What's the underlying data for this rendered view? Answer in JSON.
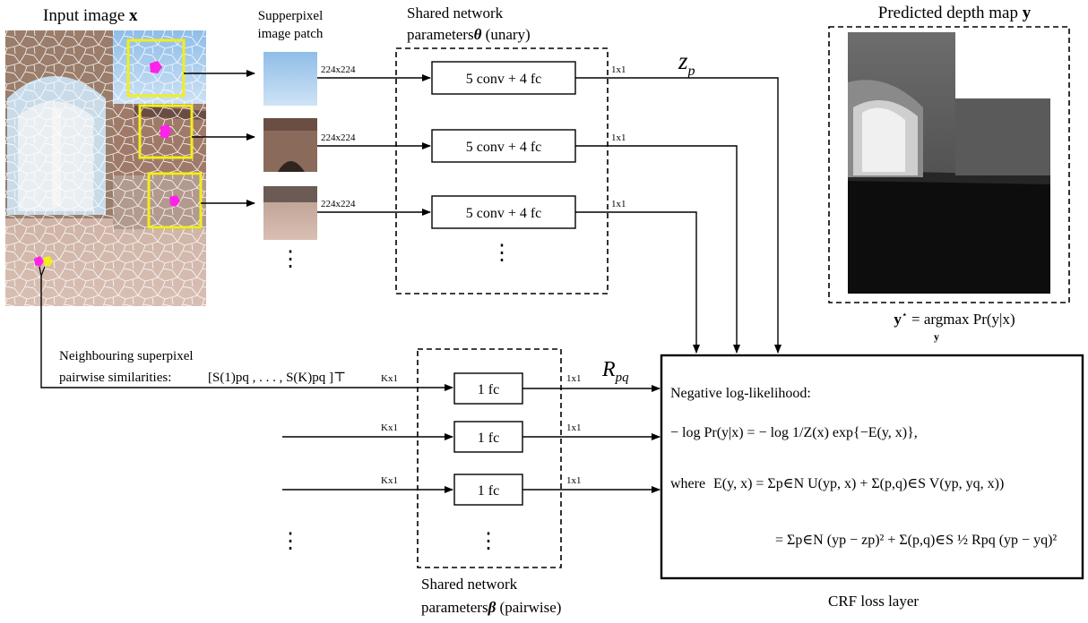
{
  "input": {
    "title": "Input image",
    "var": "x"
  },
  "patches": {
    "title_line1": "Supperpixel",
    "title_line2": "image patch",
    "vdots": "⋮"
  },
  "unary": {
    "title_line1": "Shared network",
    "title_line2": "parameters",
    "symbol": "θ",
    "suffix": "(unary)",
    "blocks": [
      "5 conv  + 4 fc",
      "5 conv  + 4 fc",
      "5 conv  + 4 fc"
    ],
    "in_dims": [
      "224x224",
      "224x224",
      "224x224"
    ],
    "out_dims": [
      "1x1",
      "1x1",
      "1x1"
    ],
    "vdots": "⋮"
  },
  "zp": {
    "main": "z",
    "sub": "p"
  },
  "output": {
    "title": "Predicted depth map",
    "var": "y",
    "eq_lhs": "y",
    "eq_star": "⋆",
    "eq_rest": " = argmax Pr(y|x)",
    "eq_under": "y"
  },
  "pairwise_label": {
    "line1": "Neighbouring superpixel",
    "line2": "pairwise similarities:",
    "vector": "[S(1)pq , . . . , S(K)pq ]⊤"
  },
  "pairwise": {
    "title_line1": "Shared network",
    "title_line2": "parameters",
    "symbol": "β",
    "suffix": "(pairwise)",
    "blocks": [
      "1 fc",
      "1 fc",
      "1 fc"
    ],
    "in_dims": [
      "Kx1",
      "Kx1",
      "Kx1"
    ],
    "out_dims": [
      "1x1",
      "1x1",
      "1x1"
    ],
    "vdots": "⋮",
    "left_vdots": "⋮"
  },
  "rpq": {
    "main": "R",
    "sub": "pq"
  },
  "crf": {
    "heading": "Negative log-likelihood:",
    "eq1": "− log Pr(y|x) = − log  1/Z(x)  exp{−E(y, x)},",
    "eq2_lead": "where",
    "eq2": "E(y, x) = Σp∈N U(yp, x) + Σ(p,q)∈S V(yp, yq, x))",
    "eq3": "= Σp∈N (yp − zp)² + Σ(p,q)∈S ½ Rpq (yp − yq)²",
    "label": "CRF loss layer"
  }
}
